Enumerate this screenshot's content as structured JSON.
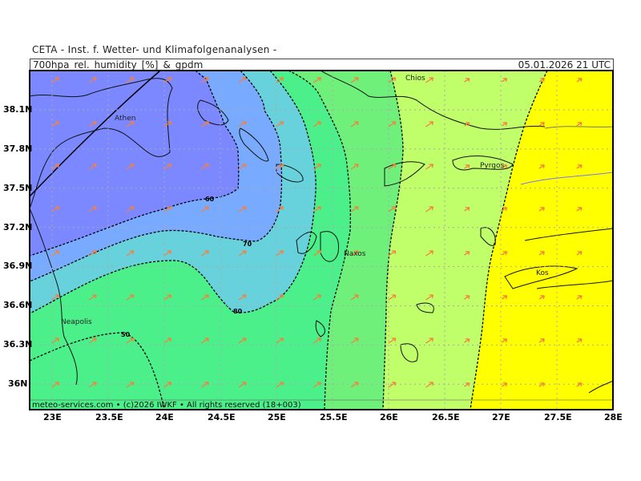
{
  "header": {
    "institute": "CETA - Inst. f. Wetter- und Klimafolgenanalysen -",
    "parameter": "700hpa_rel._humidity_[%]_&_gpdm",
    "valid_time": "05.01.2026 21 UTC"
  },
  "footer": {
    "credit": "meteo-services.com • (c)2026 IWKF • All rights reserved (18+003)"
  },
  "axes": {
    "x_ticks": [
      "23E",
      "23.5E",
      "24E",
      "24.5E",
      "25E",
      "25.5E",
      "26E",
      "26.5E",
      "27E",
      "27.5E",
      "28E"
    ],
    "y_ticks": [
      "38.1N",
      "37.8N",
      "37.5N",
      "37.2N",
      "36.9N",
      "36.6N",
      "36.3N",
      "36N"
    ]
  },
  "places": [
    "Athen",
    "Chios",
    "Pyrgos",
    "Naxos",
    "Kos",
    "Neapolis"
  ],
  "contour_labels": [
    "60",
    "70",
    "80",
    "50"
  ],
  "colors": {
    "violet": "#7b88ff",
    "light_blue": "#78aaff",
    "cyan": "#68d2dc",
    "green": "#4cf08a",
    "mid_green": "#6ef07a",
    "light_green": "#c0ff6a",
    "yellow": "#ffff00",
    "wind_arrow": "#f5803c"
  }
}
